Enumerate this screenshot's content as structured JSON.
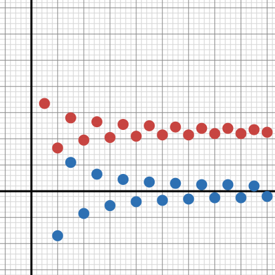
{
  "chart_data": {
    "type": "scatter",
    "title": "",
    "xlabel": "",
    "ylabel": "",
    "xlim": [
      -1.2,
      9.3
    ],
    "ylim": [
      -3.2,
      7.3
    ],
    "grid": true,
    "grid_minor_step": 0.2,
    "grid_major_step": 1,
    "x_axis_visible": true,
    "y_axis_visible": true,
    "tick_labels_visible": false,
    "legend": "none",
    "series": [
      {
        "color": "#c74440",
        "points": [
          [
            0.5,
            3.35
          ],
          [
            1.0,
            1.65
          ],
          [
            1.5,
            2.8
          ],
          [
            2.0,
            1.95
          ],
          [
            2.5,
            2.65
          ],
          [
            3.0,
            2.05
          ],
          [
            3.5,
            2.55
          ],
          [
            4.0,
            2.1
          ],
          [
            4.5,
            2.5
          ],
          [
            5.0,
            2.15
          ],
          [
            5.5,
            2.45
          ],
          [
            6.0,
            2.15
          ],
          [
            6.5,
            2.4
          ],
          [
            7.0,
            2.2
          ],
          [
            7.5,
            2.4
          ],
          [
            8.0,
            2.2
          ],
          [
            8.5,
            2.35
          ],
          [
            9.0,
            2.25
          ]
        ]
      },
      {
        "color": "#2d70b3",
        "points": [
          [
            1.0,
            -1.7
          ],
          [
            1.5,
            1.1
          ],
          [
            2.0,
            -0.85
          ],
          [
            2.5,
            0.65
          ],
          [
            3.0,
            -0.55
          ],
          [
            3.5,
            0.45
          ],
          [
            4.0,
            -0.4
          ],
          [
            4.5,
            0.35
          ],
          [
            5.0,
            -0.35
          ],
          [
            5.5,
            0.3
          ],
          [
            6.0,
            -0.3
          ],
          [
            6.5,
            0.25
          ],
          [
            7.0,
            -0.25
          ],
          [
            7.5,
            0.25
          ],
          [
            8.0,
            -0.25
          ],
          [
            8.5,
            0.2
          ],
          [
            9.0,
            -0.2
          ]
        ]
      }
    ]
  }
}
